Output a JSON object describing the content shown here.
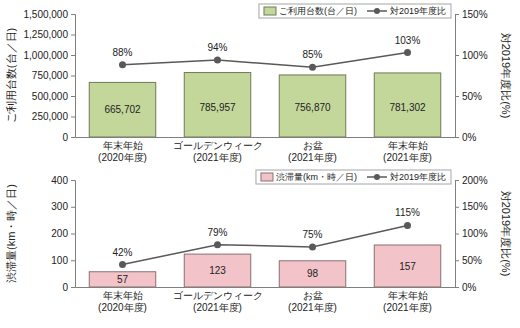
{
  "chart_data": [
    {
      "type": "bar",
      "categories": [
        "年末年始\n(2020年度)",
        "ゴールデンウィーク\n(2021年度)",
        "お盆\n(2021年度)",
        "年末年始\n(2021年度)"
      ],
      "series": [
        {
          "name": "ご利用台数(台／日)",
          "type": "bar",
          "color": "#c4d79b",
          "values": [
            665702,
            785957,
            756870,
            781302
          ],
          "value_labels": [
            "665,702",
            "785,957",
            "756,870",
            "781,302"
          ]
        },
        {
          "name": "対2019年度比",
          "type": "line",
          "axis": "y2",
          "color": "#595959",
          "marker": "circle",
          "line_style": "solid",
          "values": [
            88,
            94,
            85,
            103
          ],
          "value_labels": [
            "88%",
            "94%",
            "85%",
            "103%"
          ]
        }
      ],
      "ylabel": "ご利用台数(台／日)",
      "y2label": "対2019年度比(%)",
      "ylim": [
        0,
        1500000
      ],
      "yticks": [
        0,
        {
          "value": 250000,
          "label": "250,000"
        },
        {
          "value": 500000,
          "label": "500,000"
        },
        {
          "value": 750000,
          "label": "750,000"
        },
        {
          "value": 1000000,
          "label": "1,000,000"
        },
        {
          "value": 1250000,
          "label": "1,250,000"
        },
        {
          "value": 1500000,
          "label": "1,500,000"
        }
      ],
      "y2lim": [
        0,
        150
      ],
      "y2ticks": [
        {
          "value": 0,
          "label": "0%"
        },
        {
          "value": 50,
          "label": "50%"
        },
        {
          "value": 100,
          "label": "100%"
        },
        {
          "value": 150,
          "label": "150%"
        }
      ],
      "grid": false,
      "legend": "upper right",
      "data_labels": true
    },
    {
      "type": "bar",
      "categories": [
        "年末年始\n(2020年度)",
        "ゴールデンウィーク\n(2021年度)",
        "お盆\n(2021年度)",
        "年末年始\n(2021年度)"
      ],
      "series": [
        {
          "name": "渋滞量(km・時／日)",
          "type": "bar",
          "color": "#f2c4c9",
          "values": [
            57,
            123,
            98,
            157
          ]
        },
        {
          "name": "対2019年度比",
          "type": "line",
          "axis": "y2",
          "color": "#595959",
          "marker": "circle",
          "line_style": "solid",
          "values": [
            42,
            79,
            75,
            115
          ],
          "value_labels": [
            "42%",
            "79%",
            "75%",
            "115%"
          ]
        }
      ],
      "ylabel": "渋滞量(km・時／日)",
      "y2label": "対2019年度比(%)",
      "ylim": [
        0,
        400
      ],
      "yticks": [
        0,
        100,
        200,
        300,
        400
      ],
      "y2lim": [
        0,
        200
      ],
      "y2ticks": [
        {
          "value": 0,
          "label": "0%"
        },
        {
          "value": 50,
          "label": "50%"
        },
        {
          "value": 100,
          "label": "100%"
        },
        {
          "value": 150,
          "label": "150%"
        },
        {
          "value": 200,
          "label": "200%"
        }
      ],
      "grid": false,
      "legend": "upper right",
      "data_labels": true
    }
  ]
}
